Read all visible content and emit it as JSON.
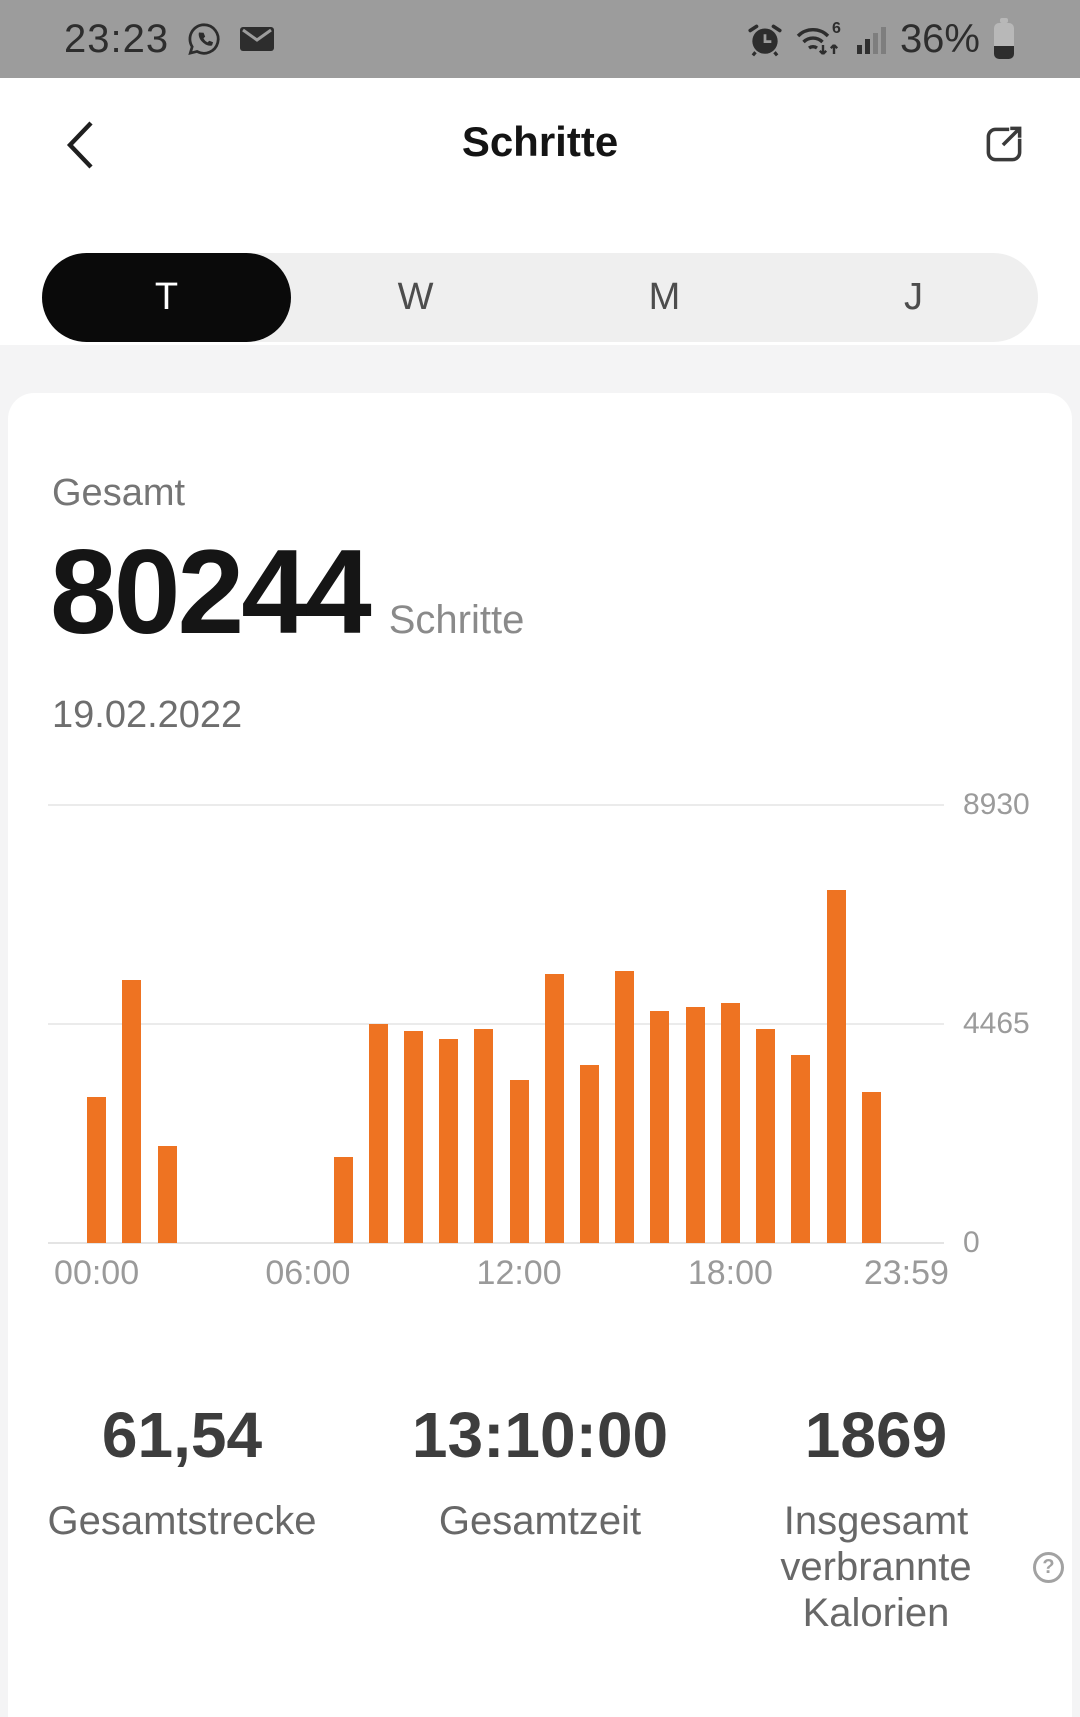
{
  "status_bar": {
    "time": "23:23",
    "battery_percent": "36%",
    "wifi_standard": "6",
    "icons": [
      "whatsapp-icon",
      "mail-icon",
      "alarm-icon",
      "wifi-6-icon",
      "signal-strength-icon",
      "battery-icon"
    ]
  },
  "header": {
    "title": "Schritte",
    "icons": [
      "back-icon",
      "share-icon"
    ]
  },
  "tabs": {
    "items": [
      {
        "label": "T",
        "active": true
      },
      {
        "label": "W",
        "active": false
      },
      {
        "label": "M",
        "active": false
      },
      {
        "label": "J",
        "active": false
      }
    ]
  },
  "summary": {
    "label": "Gesamt",
    "value": "80244",
    "unit": "Schritte",
    "date": "19.02.2022"
  },
  "chart_data": {
    "type": "bar",
    "x_unit": "hour_of_day",
    "values": [
      2980,
      5360,
      1980,
      0,
      0,
      0,
      0,
      1750,
      4464,
      4320,
      4160,
      4360,
      3320,
      5480,
      3630,
      5540,
      4730,
      4810,
      4890,
      4360,
      3830,
      7200,
      3080,
      0
    ],
    "total": 80244,
    "ylim": [
      0,
      8930
    ],
    "y_ticks": [
      0,
      4465,
      8930
    ],
    "x_tick_labels": [
      {
        "hour": 0,
        "label": "00:00"
      },
      {
        "hour": 6,
        "label": "06:00"
      },
      {
        "hour": 12,
        "label": "12:00"
      },
      {
        "hour": 18,
        "label": "18:00"
      },
      {
        "hour": 23,
        "label": "23:59"
      }
    ],
    "bar_color": "#EE7322",
    "grid": true,
    "legend": false,
    "y_axis_side": "right"
  },
  "stats": {
    "items": [
      {
        "value": "61,54",
        "label_lines": [
          "Gesamtstrecke"
        ]
      },
      {
        "value": "13:10:00",
        "label_lines": [
          "Gesamtzeit"
        ]
      },
      {
        "value": "1869",
        "label_lines": [
          "Insgesamt",
          "verbrannte",
          "Kalorien"
        ],
        "has_help": true
      }
    ],
    "help_glyph": "?"
  },
  "colors": {
    "accent": "#EE7322",
    "status_bar_bg": "#9C9C9C",
    "tab_active_bg": "#0A0A0A",
    "card_bg": "#FFFFFF"
  }
}
